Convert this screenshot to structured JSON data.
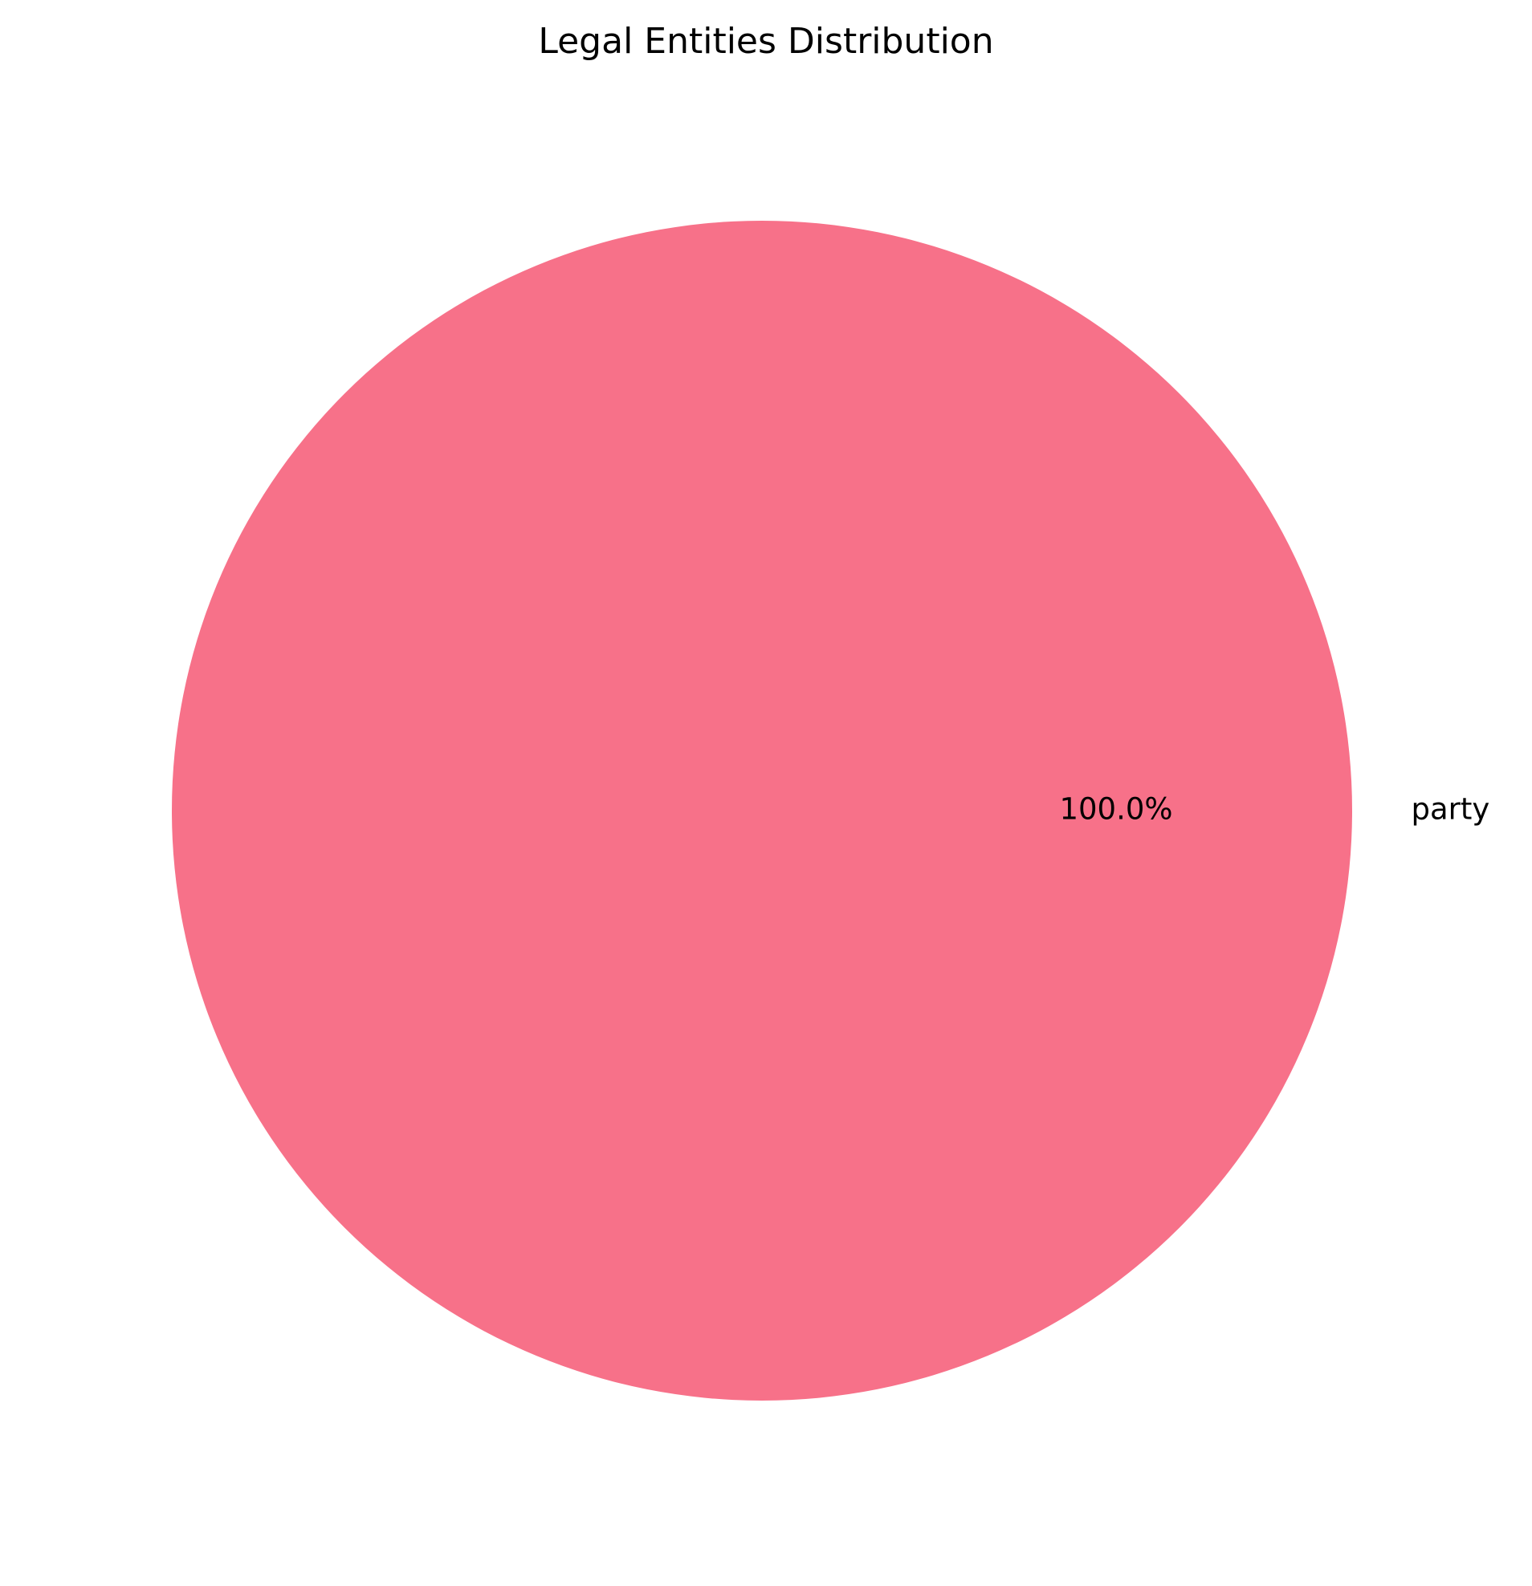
{
  "chart_data": {
    "type": "pie",
    "title": "Legal Entities Distribution",
    "categories": [
      "party"
    ],
    "values": [
      100
    ],
    "percent_labels": [
      "100.0%"
    ],
    "colors": [
      "#f77189"
    ],
    "legend": false
  }
}
